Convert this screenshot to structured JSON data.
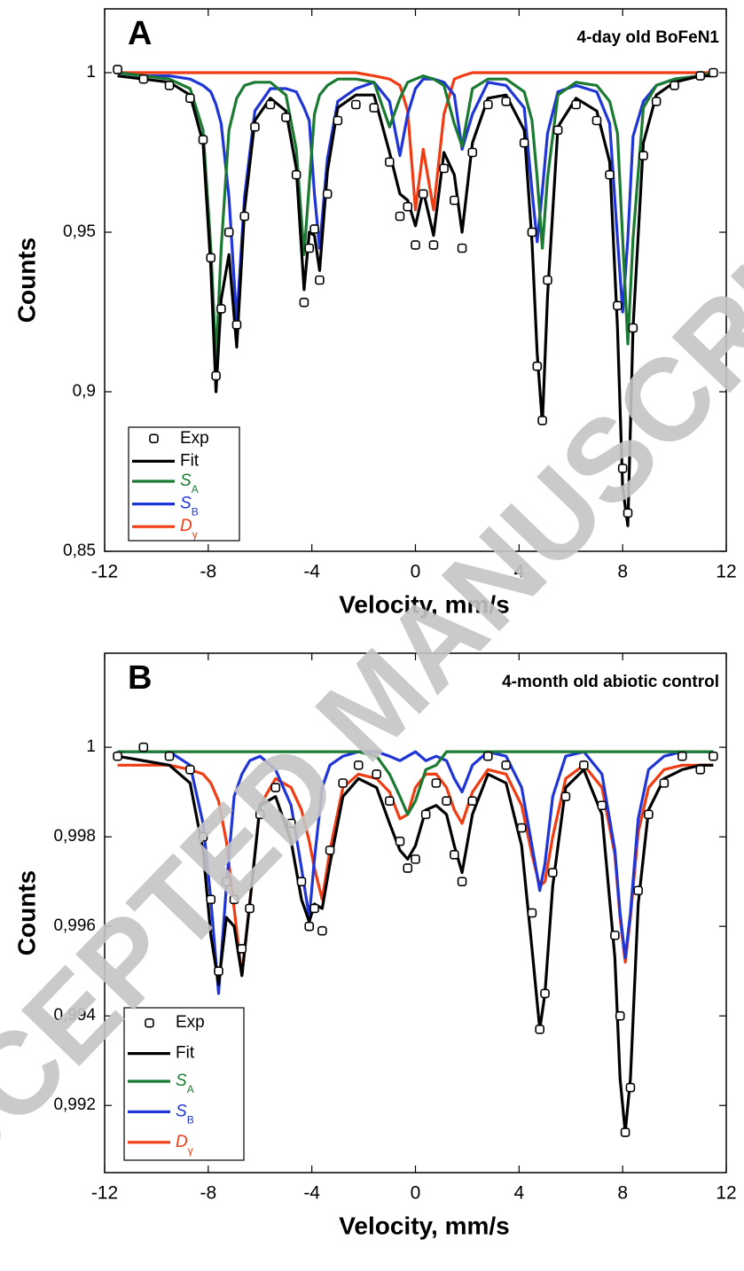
{
  "watermark": "ACCEPTED MANUSCRIPT",
  "chart_data": [
    {
      "type": "line",
      "panel_label": "A",
      "annotation": "4-day old BoFeN1",
      "x_label": "Velocity, mm/s",
      "y_label": "Counts",
      "xlim": [
        -12,
        12
      ],
      "xticks": [
        -12,
        -8,
        -4,
        0,
        4,
        8,
        12
      ],
      "ylim": [
        0.85,
        1.02
      ],
      "yticks": [
        {
          "value": 0.85,
          "label": "0,85"
        },
        {
          "value": 0.9,
          "label": "0,9"
        },
        {
          "value": 0.95,
          "label": "0,95"
        },
        1
      ],
      "legend": "lower left",
      "x": [
        -11.5,
        -10.5,
        -9.5,
        -8.7,
        -8.2,
        -7.9,
        -7.7,
        -7.5,
        -7.2,
        -6.9,
        -6.6,
        -6.2,
        -5.6,
        -5,
        -4.6,
        -4.3,
        -4.1,
        -3.9,
        -3.7,
        -3.4,
        -3,
        -2.3,
        -1.6,
        -1,
        -0.6,
        -0.3,
        0,
        0.3,
        0.7,
        1.1,
        1.5,
        1.8,
        2.2,
        2.8,
        3.5,
        4.2,
        4.5,
        4.7,
        4.9,
        5.1,
        5.5,
        6.2,
        7,
        7.5,
        7.8,
        8,
        8.2,
        8.4,
        8.8,
        9.3,
        10,
        11,
        11.5
      ],
      "series": [
        {
          "name": "Exp",
          "mode": "markers",
          "color": "#000000",
          "values": [
            1.001,
            0.998,
            0.996,
            0.992,
            0.979,
            0.942,
            0.905,
            0.926,
            0.95,
            0.921,
            0.955,
            0.983,
            0.99,
            0.986,
            0.968,
            0.928,
            0.945,
            0.951,
            0.935,
            0.962,
            0.985,
            0.99,
            0.989,
            0.972,
            0.955,
            0.958,
            0.946,
            0.962,
            0.946,
            0.97,
            0.96,
            0.945,
            0.975,
            0.99,
            0.991,
            0.978,
            0.95,
            0.908,
            0.891,
            0.935,
            0.982,
            0.99,
            0.985,
            0.968,
            0.927,
            0.876,
            0.862,
            0.92,
            0.974,
            0.991,
            0.996,
            0.999,
            1.0
          ]
        },
        {
          "name": "Fit",
          "mode": "lines",
          "color": "#000000",
          "values": [
            0.999,
            0.998,
            0.997,
            0.993,
            0.978,
            0.939,
            0.9,
            0.929,
            0.943,
            0.914,
            0.957,
            0.985,
            0.992,
            0.988,
            0.97,
            0.932,
            0.95,
            0.949,
            0.938,
            0.969,
            0.989,
            0.993,
            0.993,
            0.975,
            0.962,
            0.96,
            0.952,
            0.963,
            0.949,
            0.975,
            0.968,
            0.95,
            0.978,
            0.992,
            0.993,
            0.982,
            0.947,
            0.912,
            0.89,
            0.93,
            0.983,
            0.992,
            0.988,
            0.972,
            0.92,
            0.87,
            0.858,
            0.92,
            0.978,
            0.993,
            0.997,
            0.999,
            0.999
          ]
        },
        {
          "name": "S",
          "subscript": "A",
          "mode": "lines",
          "color": "#1b7a32",
          "values": [
            1.0,
            0.999,
            0.998,
            0.995,
            0.982,
            0.945,
            0.91,
            0.945,
            0.982,
            0.992,
            0.996,
            0.997,
            0.997,
            0.993,
            0.976,
            0.943,
            0.965,
            0.987,
            0.993,
            0.996,
            0.998,
            0.998,
            0.997,
            0.983,
            0.992,
            0.997,
            0.998,
            0.999,
            0.998,
            0.996,
            0.984,
            0.977,
            0.995,
            0.998,
            0.998,
            0.994,
            0.985,
            0.967,
            0.945,
            0.967,
            0.993,
            0.997,
            0.996,
            0.991,
            0.981,
            0.948,
            0.915,
            0.948,
            0.989,
            0.996,
            0.998,
            0.999,
            1.0
          ]
        },
        {
          "name": "S",
          "subscript": "B",
          "mode": "lines",
          "color": "#1f35d6",
          "values": [
            1.0,
            0.999,
            0.999,
            0.998,
            0.996,
            0.994,
            0.99,
            0.984,
            0.961,
            0.922,
            0.961,
            0.988,
            0.995,
            0.995,
            0.994,
            0.989,
            0.985,
            0.962,
            0.945,
            0.973,
            0.991,
            0.995,
            0.997,
            0.991,
            0.974,
            0.987,
            0.995,
            0.998,
            0.998,
            0.997,
            0.993,
            0.976,
            0.987,
            0.997,
            0.996,
            0.989,
            0.963,
            0.947,
            0.963,
            0.981,
            0.994,
            0.996,
            0.994,
            0.984,
            0.948,
            0.925,
            0.948,
            0.98,
            0.991,
            0.996,
            0.998,
            0.999,
            1.0
          ]
        },
        {
          "name": "D",
          "subscript": "γ",
          "mode": "lines",
          "color": "#f03c12",
          "values": [
            1,
            1,
            1,
            1,
            1,
            1,
            1,
            1,
            1,
            1,
            1,
            1,
            1,
            1,
            1,
            1,
            1,
            1,
            1,
            1,
            1,
            1,
            0.999,
            0.998,
            0.996,
            0.988,
            0.957,
            0.976,
            0.957,
            0.987,
            0.998,
            0.999,
            1,
            1,
            1,
            1,
            1,
            1,
            1,
            1,
            1,
            1,
            1,
            1,
            1,
            1,
            1,
            1,
            1,
            1,
            1,
            1,
            1
          ]
        }
      ]
    },
    {
      "type": "line",
      "panel_label": "B",
      "annotation": "4-month old abiotic control",
      "x_label": "Velocity, mm/s",
      "y_label": "Counts",
      "xlim": [
        -12,
        12
      ],
      "xticks": [
        -12,
        -8,
        -4,
        0,
        4,
        8,
        12
      ],
      "ylim": [
        0.9905,
        1.0021
      ],
      "yticks": [
        {
          "value": 0.992,
          "label": "0,992"
        },
        {
          "value": 0.994,
          "label": "0,994"
        },
        {
          "value": 0.996,
          "label": "0,996"
        },
        {
          "value": 0.998,
          "label": "0,998"
        },
        1
      ],
      "legend": "lower left",
      "x": [
        -11.5,
        -10.5,
        -9.5,
        -8.7,
        -8.2,
        -7.9,
        -7.6,
        -7.3,
        -7,
        -6.7,
        -6.4,
        -6,
        -5.4,
        -4.8,
        -4.4,
        -4.1,
        -3.9,
        -3.6,
        -3.3,
        -2.8,
        -2.2,
        -1.5,
        -1,
        -0.6,
        -0.3,
        0,
        0.4,
        0.8,
        1.2,
        1.5,
        1.8,
        2.2,
        2.8,
        3.5,
        4.1,
        4.5,
        4.8,
        5,
        5.3,
        5.8,
        6.5,
        7.2,
        7.7,
        7.9,
        8.1,
        8.3,
        8.6,
        9,
        9.6,
        10.3,
        11,
        11.5
      ],
      "series": [
        {
          "name": "Exp",
          "mode": "markers",
          "color": "#000000",
          "values": [
            0.9998,
            1.0,
            0.9998,
            0.9995,
            0.998,
            0.9966,
            0.995,
            0.997,
            0.9966,
            0.9955,
            0.9964,
            0.9985,
            0.9991,
            0.9983,
            0.997,
            0.996,
            0.9964,
            0.9959,
            0.9977,
            0.9992,
            0.9996,
            0.9994,
            0.9988,
            0.9979,
            0.9973,
            0.9975,
            0.9985,
            0.9992,
            0.9988,
            0.9976,
            0.997,
            0.9988,
            0.9998,
            0.9996,
            0.9982,
            0.9963,
            0.9937,
            0.9945,
            0.9972,
            0.9989,
            0.9996,
            0.9987,
            0.9958,
            0.994,
            0.9914,
            0.9924,
            0.9968,
            0.9985,
            0.9992,
            0.9998,
            0.9995,
            0.9998
          ]
        },
        {
          "name": "Fit",
          "mode": "lines",
          "color": "#000000",
          "values": [
            0.9998,
            0.9997,
            0.9996,
            0.9992,
            0.9977,
            0.9958,
            0.9947,
            0.9962,
            0.996,
            0.9949,
            0.9965,
            0.9987,
            0.9989,
            0.9979,
            0.9966,
            0.9961,
            0.9965,
            0.9964,
            0.9974,
            0.9989,
            0.9993,
            0.9991,
            0.9983,
            0.9977,
            0.9975,
            0.9978,
            0.9986,
            0.9987,
            0.9985,
            0.9978,
            0.9972,
            0.9985,
            0.9994,
            0.9992,
            0.9978,
            0.9955,
            0.9937,
            0.9945,
            0.9969,
            0.9991,
            0.9995,
            0.9985,
            0.9953,
            0.9926,
            0.9914,
            0.9926,
            0.9965,
            0.9986,
            0.9993,
            0.9995,
            0.9996,
            0.9996
          ]
        },
        {
          "name": "S",
          "subscript": "A",
          "mode": "lines",
          "color": "#1b7a32",
          "values": [
            0.9999,
            0.9999,
            0.9999,
            0.9999,
            0.9999,
            0.9999,
            0.9999,
            0.9999,
            0.9999,
            0.9999,
            0.9999,
            0.9999,
            0.9999,
            0.9999,
            0.9999,
            0.9999,
            0.9999,
            0.9999,
            0.9999,
            0.9999,
            0.9999,
            0.9998,
            0.9994,
            0.9989,
            0.9985,
            0.9988,
            0.9995,
            0.9996,
            0.9999,
            0.9999,
            0.9999,
            0.9999,
            0.9999,
            0.9999,
            0.9999,
            0.9999,
            0.9999,
            0.9999,
            0.9999,
            0.9999,
            0.9999,
            0.9999,
            0.9999,
            0.9999,
            0.9999,
            0.9999,
            0.9999,
            0.9999,
            0.9999,
            0.9999,
            0.9999,
            0.9999
          ]
        },
        {
          "name": "S",
          "subscript": "B",
          "mode": "lines",
          "color": "#1f35d6",
          "values": [
            0.9999,
            0.9999,
            0.9999,
            0.9996,
            0.9983,
            0.9966,
            0.9945,
            0.9969,
            0.9989,
            0.9994,
            0.9997,
            0.9998,
            0.9995,
            0.9987,
            0.9973,
            0.9962,
            0.9975,
            0.9991,
            0.9996,
            0.9998,
            0.9999,
            0.9999,
            0.9998,
            0.9997,
            0.9998,
            0.9999,
            0.9997,
            0.9998,
            0.9997,
            0.9993,
            0.999,
            0.9996,
            0.9999,
            0.9998,
            0.9991,
            0.9978,
            0.9968,
            0.9974,
            0.9989,
            0.9998,
            0.9999,
            0.9994,
            0.9977,
            0.9963,
            0.9953,
            0.9963,
            0.9984,
            0.9995,
            0.9998,
            0.9999,
            0.9999,
            0.9999
          ]
        },
        {
          "name": "D",
          "subscript": "γ",
          "mode": "lines",
          "color": "#f03c12",
          "values": [
            0.9996,
            0.9996,
            0.9996,
            0.9995,
            0.9994,
            0.9992,
            0.9988,
            0.9979,
            0.9964,
            0.9949,
            0.9965,
            0.9987,
            0.9993,
            0.9991,
            0.9986,
            0.9979,
            0.9973,
            0.9966,
            0.9977,
            0.9991,
            0.9994,
            0.9993,
            0.999,
            0.9984,
            0.9985,
            0.9991,
            0.9994,
            0.9994,
            0.9991,
            0.9986,
            0.9983,
            0.999,
            0.9995,
            0.9994,
            0.9987,
            0.9976,
            0.9969,
            0.997,
            0.998,
            0.9993,
            0.9996,
            0.9991,
            0.9976,
            0.9962,
            0.9952,
            0.9962,
            0.9981,
            0.9991,
            0.9995,
            0.9996,
            0.9996,
            0.9996
          ]
        }
      ]
    }
  ]
}
